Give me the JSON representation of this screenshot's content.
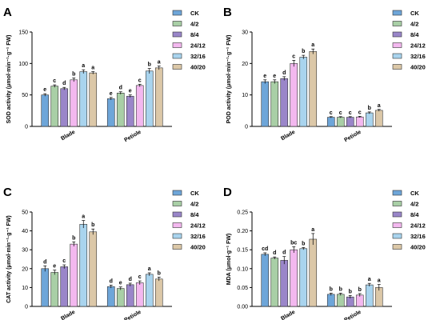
{
  "legend_labels": [
    "CK",
    "4/2",
    "8/4",
    "24/12",
    "32/16",
    "40/20"
  ],
  "legend_colors": [
    "#6ea6d9",
    "#a9cfa6",
    "#9a86c9",
    "#f3b8ef",
    "#a9d4ee",
    "#dcc8a8"
  ],
  "chart_data": [
    {
      "type": "bar",
      "panel": "A",
      "ylabel": "SOD activity (μmol·min⁻¹·g⁻¹ FW)",
      "ylim": [
        0,
        150
      ],
      "yticks": [
        0,
        50,
        100,
        150
      ],
      "categories": [
        "Blade",
        "Petiole"
      ],
      "legend": "right",
      "series": [
        {
          "name": "CK",
          "values": [
            50,
            44
          ],
          "errors": [
            2,
            2
          ],
          "letters": [
            "e",
            "e"
          ]
        },
        {
          "name": "4/2",
          "values": [
            64,
            53
          ],
          "errors": [
            2,
            2
          ],
          "letters": [
            "c",
            "d"
          ]
        },
        {
          "name": "8/4",
          "values": [
            60,
            48
          ],
          "errors": [
            2,
            2
          ],
          "letters": [
            "d",
            "e"
          ]
        },
        {
          "name": "24/12",
          "values": [
            74,
            65
          ],
          "errors": [
            3,
            2
          ],
          "letters": [
            "b",
            "c"
          ]
        },
        {
          "name": "32/16",
          "values": [
            87,
            88
          ],
          "errors": [
            3,
            4
          ],
          "letters": [
            "a",
            "b"
          ]
        },
        {
          "name": "40/20",
          "values": [
            85,
            93
          ],
          "errors": [
            2,
            3
          ],
          "letters": [
            "a",
            "a"
          ]
        }
      ]
    },
    {
      "type": "bar",
      "panel": "B",
      "ylabel": "POD activity (μmol·min⁻¹·g⁻¹ FW)",
      "ylim": [
        0,
        30
      ],
      "yticks": [
        0,
        10,
        20,
        30
      ],
      "categories": [
        "Blade",
        "Petiole"
      ],
      "legend": "right",
      "series": [
        {
          "name": "CK",
          "values": [
            14.2,
            2.9
          ],
          "errors": [
            0.6,
            0.2
          ],
          "letters": [
            "e",
            "c"
          ]
        },
        {
          "name": "4/2",
          "values": [
            14.2,
            2.9
          ],
          "errors": [
            0.6,
            0.2
          ],
          "letters": [
            "e",
            "c"
          ]
        },
        {
          "name": "8/4",
          "values": [
            15.2,
            2.9
          ],
          "errors": [
            0.6,
            0.2
          ],
          "letters": [
            "d",
            "c"
          ]
        },
        {
          "name": "24/12",
          "values": [
            20.0,
            3.0
          ],
          "errors": [
            1.0,
            0.2
          ],
          "letters": [
            "c",
            "c"
          ]
        },
        {
          "name": "32/16",
          "values": [
            22.0,
            4.3
          ],
          "errors": [
            0.6,
            0.3
          ],
          "letters": [
            "b",
            "b"
          ]
        },
        {
          "name": "40/20",
          "values": [
            23.8,
            5.1
          ],
          "errors": [
            0.8,
            0.3
          ],
          "letters": [
            "a",
            "a"
          ]
        }
      ]
    },
    {
      "type": "bar",
      "panel": "C",
      "ylabel": "CAT activity (μmol·min⁻¹·g⁻¹ FW)",
      "ylim": [
        0,
        50
      ],
      "yticks": [
        0,
        10,
        20,
        30,
        40,
        50
      ],
      "categories": [
        "Blade",
        "Petiole"
      ],
      "legend": "right",
      "series": [
        {
          "name": "CK",
          "values": [
            20,
            10.5
          ],
          "errors": [
            1.5,
            0.8
          ],
          "letters": [
            "d",
            "d"
          ]
        },
        {
          "name": "4/2",
          "values": [
            18,
            9.5
          ],
          "errors": [
            1.2,
            0.8
          ],
          "letters": [
            "e",
            "e"
          ]
        },
        {
          "name": "8/4",
          "values": [
            21,
            11.5
          ],
          "errors": [
            1.0,
            0.8
          ],
          "letters": [
            "c",
            "d"
          ]
        },
        {
          "name": "24/12",
          "values": [
            33,
            12.5
          ],
          "errors": [
            1.2,
            1.0
          ],
          "letters": [
            "b",
            "c"
          ]
        },
        {
          "name": "32/16",
          "values": [
            43.5,
            17
          ],
          "errors": [
            2.0,
            0.8
          ],
          "letters": [
            "a",
            "a"
          ]
        },
        {
          "name": "40/20",
          "values": [
            39.5,
            14.5
          ],
          "errors": [
            1.5,
            1.0
          ],
          "letters": [
            "b",
            "b"
          ]
        }
      ]
    },
    {
      "type": "bar",
      "panel": "D",
      "ylabel": "MDA (μmol·g⁻¹ FW)",
      "ylim": [
        0,
        0.25
      ],
      "yticks": [
        "0.00",
        "0.05",
        "0.10",
        "0.15",
        "0.20",
        "0.25"
      ],
      "categories": [
        "Blade",
        "Petiole"
      ],
      "legend": "right",
      "series": [
        {
          "name": "CK",
          "values": [
            0.138,
            0.032
          ],
          "errors": [
            0.004,
            0.003
          ],
          "letters": [
            "cd",
            "b"
          ]
        },
        {
          "name": "4/2",
          "values": [
            0.128,
            0.032
          ],
          "errors": [
            0.003,
            0.003
          ],
          "letters": [
            "d",
            "b"
          ]
        },
        {
          "name": "8/4",
          "values": [
            0.122,
            0.025
          ],
          "errors": [
            0.01,
            0.004
          ],
          "letters": [
            "d",
            "b"
          ]
        },
        {
          "name": "24/12",
          "values": [
            0.15,
            0.03
          ],
          "errors": [
            0.008,
            0.004
          ],
          "letters": [
            "bc",
            "b"
          ]
        },
        {
          "name": "32/16",
          "values": [
            0.153,
            0.057
          ],
          "errors": [
            0.003,
            0.004
          ],
          "letters": [
            "b",
            "a"
          ]
        },
        {
          "name": "40/20",
          "values": [
            0.178,
            0.05
          ],
          "errors": [
            0.015,
            0.008
          ],
          "letters": [
            "a",
            "a"
          ]
        }
      ]
    }
  ]
}
